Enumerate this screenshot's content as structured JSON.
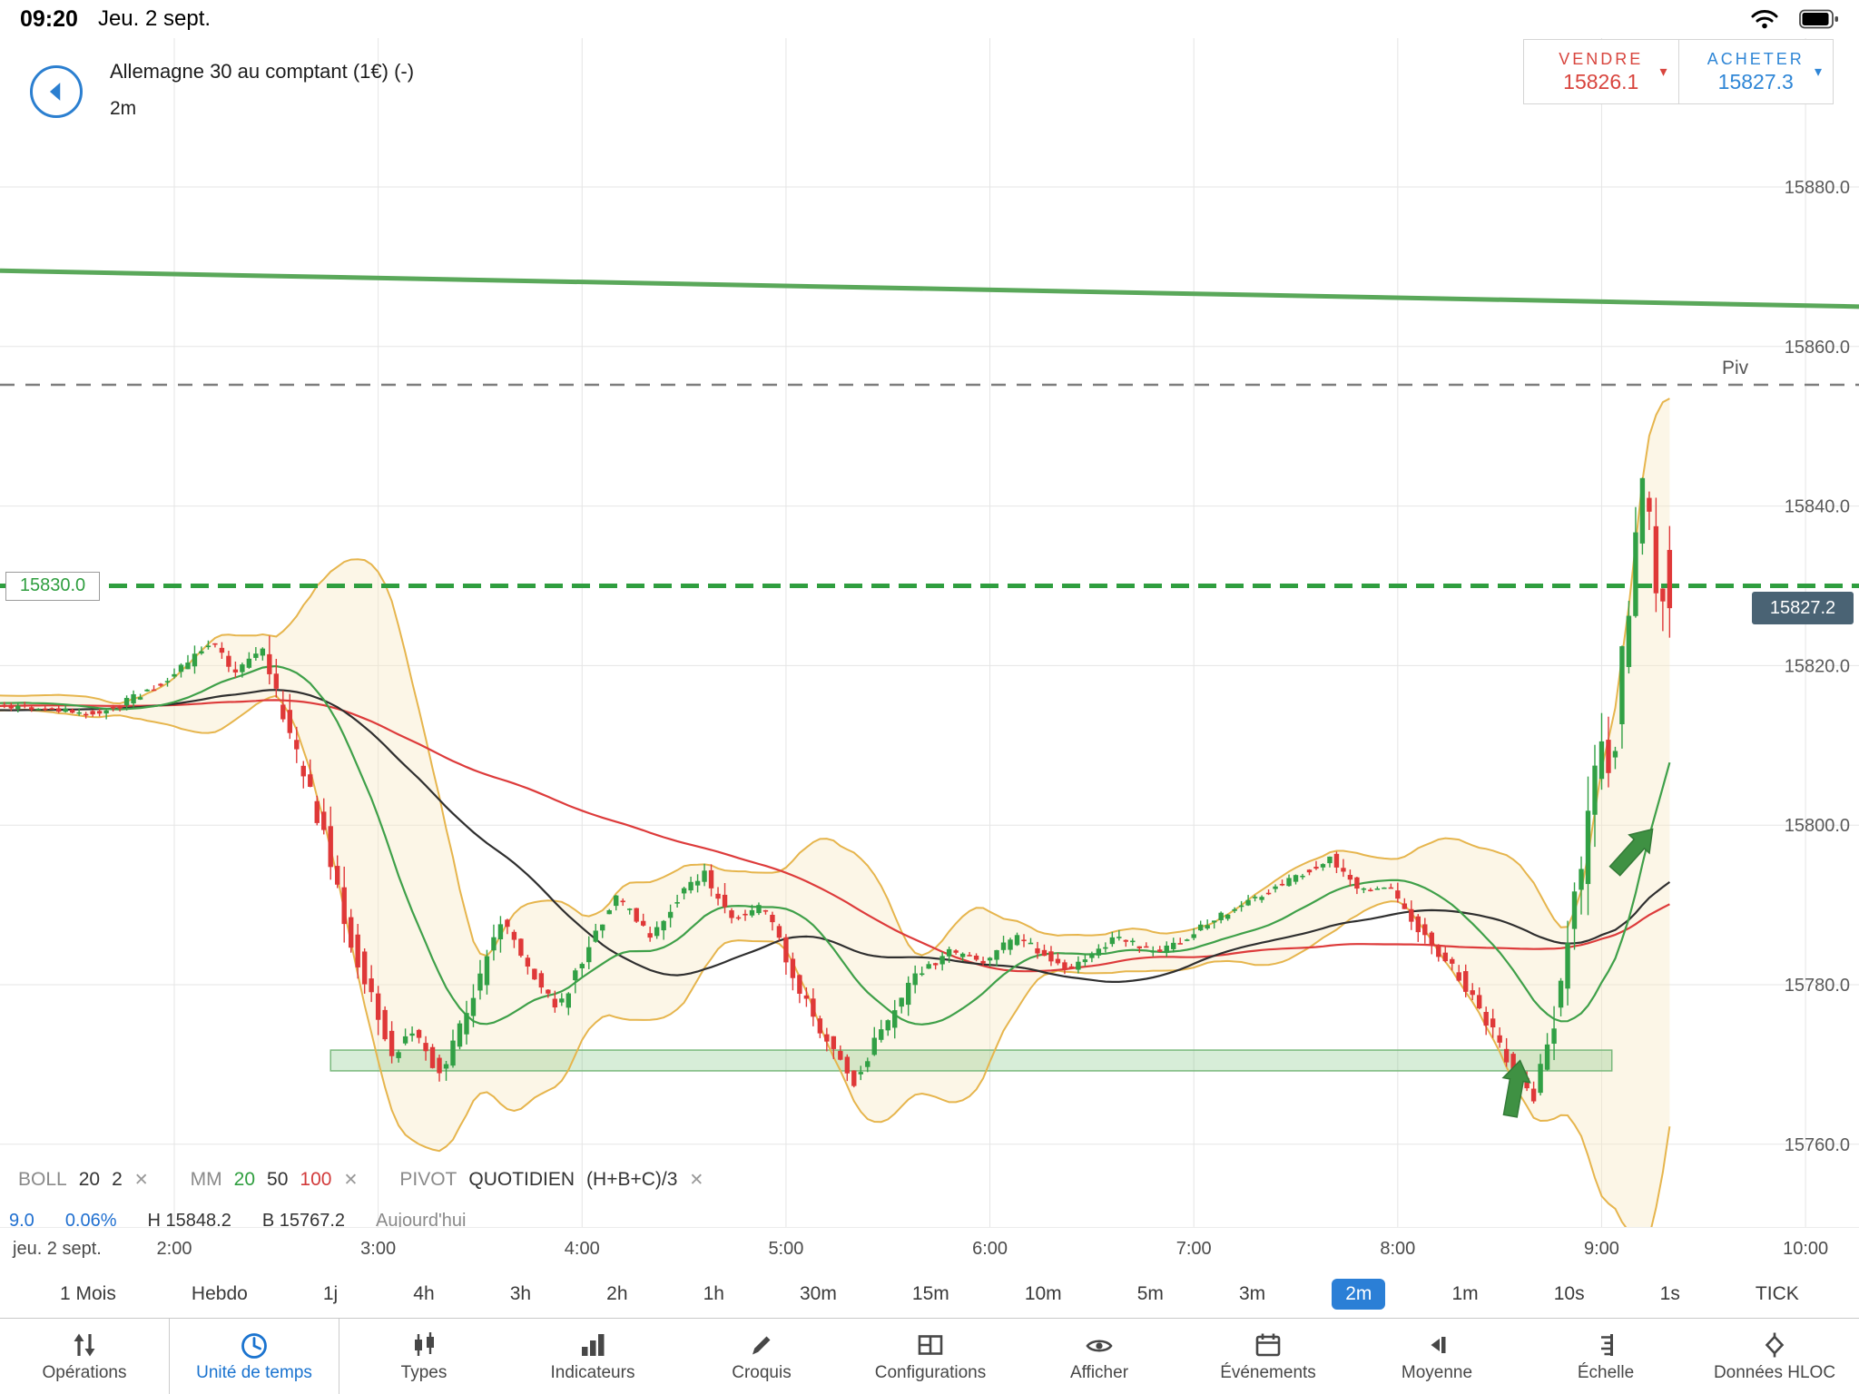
{
  "status_bar": {
    "time": "09:20",
    "date": "Jeu. 2 sept."
  },
  "header": {
    "title": "Allemagne 30 au comptant (1€) (-)",
    "timeframe": "2m"
  },
  "quote_panel": {
    "sell_label": "VENDRE",
    "sell_price": "15826.1",
    "buy_label": "ACHETER",
    "buy_price": "15827.3",
    "caret_symbol": "▾"
  },
  "legend": {
    "boll_name": "BOLL",
    "boll_p1": "20",
    "boll_p2": "2",
    "mm_name": "MM",
    "mm_p1": "20",
    "mm_p2": "50",
    "mm_p3": "100",
    "pivot_name": "PIVOT",
    "pivot_p1": "QUOTIDIEN",
    "pivot_p2": "(H+B+C)/3",
    "remove_symbol": "✕"
  },
  "stats_row": {
    "change": "9.0",
    "change_pct": "0.06%",
    "high": "H 15848.2",
    "low": "B 15767.2",
    "session": "Aujourd'hui"
  },
  "chart_data": {
    "type": "candlestick",
    "title": "Allemagne 30 au comptant (1€)",
    "interval": "2m",
    "y_axis": {
      "tick_labels": [
        "15880.0",
        "15860.0",
        "15840.0",
        "15820.0",
        "15800.0",
        "15780.0",
        "15760.0"
      ],
      "tick_values": [
        15880,
        15860,
        15840,
        15820,
        15800,
        15780,
        15760
      ]
    },
    "x_axis": {
      "tick_labels": [
        "jeu. 2 sept.",
        "2:00",
        "3:00",
        "4:00",
        "5:00",
        "6:00",
        "7:00",
        "8:00",
        "9:00",
        "10:00"
      ],
      "tick_minutes": [
        null,
        120,
        180,
        240,
        300,
        360,
        420,
        480,
        540,
        600
      ]
    },
    "last_price": 15827.2,
    "price_path_minutes_price": [
      [
        -140,
        15813
      ],
      [
        -60,
        15817
      ],
      [
        0,
        15813
      ],
      [
        60,
        15816
      ],
      [
        70,
        15815
      ],
      [
        100,
        15814
      ],
      [
        115,
        15817
      ],
      [
        125,
        15820
      ],
      [
        132,
        15823
      ],
      [
        140,
        15819
      ],
      [
        148,
        15822
      ],
      [
        155,
        15812
      ],
      [
        165,
        15800
      ],
      [
        172,
        15788
      ],
      [
        180,
        15778
      ],
      [
        186,
        15771
      ],
      [
        192,
        15774
      ],
      [
        200,
        15769
      ],
      [
        208,
        15776
      ],
      [
        218,
        15788
      ],
      [
        228,
        15781
      ],
      [
        235,
        15777
      ],
      [
        245,
        15786
      ],
      [
        252,
        15791
      ],
      [
        262,
        15786
      ],
      [
        270,
        15791
      ],
      [
        278,
        15794
      ],
      [
        285,
        15788
      ],
      [
        295,
        15790
      ],
      [
        305,
        15780
      ],
      [
        315,
        15772
      ],
      [
        322,
        15768
      ],
      [
        330,
        15774
      ],
      [
        340,
        15781
      ],
      [
        350,
        15784
      ],
      [
        360,
        15783
      ],
      [
        370,
        15786
      ],
      [
        385,
        15782
      ],
      [
        400,
        15786
      ],
      [
        410,
        15784
      ],
      [
        420,
        15786
      ],
      [
        435,
        15790
      ],
      [
        450,
        15793
      ],
      [
        462,
        15796
      ],
      [
        470,
        15792
      ],
      [
        480,
        15792
      ],
      [
        490,
        15786
      ],
      [
        500,
        15781
      ],
      [
        510,
        15774
      ],
      [
        518,
        15768
      ],
      [
        522,
        15766
      ],
      [
        526,
        15772
      ],
      [
        530,
        15780
      ],
      [
        534,
        15790
      ],
      [
        538,
        15800
      ],
      [
        542,
        15812
      ],
      [
        545,
        15805
      ],
      [
        548,
        15820
      ],
      [
        551,
        15833
      ],
      [
        554,
        15842
      ],
      [
        556,
        15838
      ],
      [
        558,
        15831
      ],
      [
        560,
        15827.2
      ]
    ],
    "indicators": {
      "bollinger": {
        "period": 20,
        "deviations": 2,
        "band_color": "#e6b54d",
        "fill_color": "rgba(247,233,196,0.40)"
      },
      "moving_averages": [
        {
          "period": 20,
          "color": "#3fa049"
        },
        {
          "period": 50,
          "color": "#2f2f2f"
        },
        {
          "period": 100,
          "color": "#dd3b3b"
        }
      ]
    },
    "levels": {
      "trendline": {
        "left_price": 15869.5,
        "right_price": 15865.0,
        "color": "#5aa85a"
      },
      "pivot_line": {
        "price": 15855.2,
        "label": "Piv",
        "color": "#7d7d7d"
      },
      "alert_line": {
        "price": 15830.0,
        "label": "15830.0",
        "color": "#2f9e3f"
      },
      "support_zone": {
        "price_top": 15771.8,
        "price_bottom": 15769.2,
        "start_minute": 166,
        "end_minute": 543
      }
    },
    "annotations": {
      "arrows": [
        {
          "minute": 516,
          "tip_price": 15770.5,
          "rotation_deg": 10
        },
        {
          "minute": 555,
          "tip_price": 15799.5,
          "rotation_deg": 42
        }
      ]
    },
    "candle_up_color": "#31a045",
    "candle_down_color": "#df3838"
  },
  "timeframes": {
    "items": [
      "1 Mois",
      "Hebdo",
      "1j",
      "4h",
      "3h",
      "2h",
      "1h",
      "30m",
      "15m",
      "10m",
      "5m",
      "3m",
      "2m",
      "1m",
      "10s",
      "1s",
      "TICK"
    ],
    "selected": "2m"
  },
  "toolbar": {
    "items": [
      {
        "label": "Opérations"
      },
      {
        "label": "Unité de temps"
      },
      {
        "label": "Types"
      },
      {
        "label": "Indicateurs"
      },
      {
        "label": "Croquis"
      },
      {
        "label": "Configurations"
      },
      {
        "label": "Afficher"
      },
      {
        "label": "Événements"
      },
      {
        "label": "Moyenne"
      },
      {
        "label": "Échelle"
      },
      {
        "label": "Données HLOC"
      }
    ],
    "selected": "Unité de temps"
  }
}
